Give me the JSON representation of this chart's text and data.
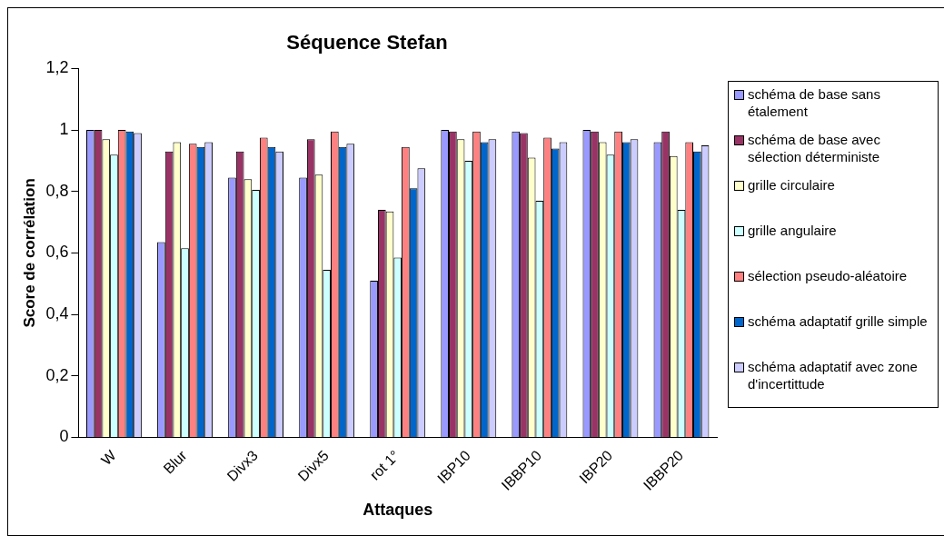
{
  "chart_data": {
    "type": "bar",
    "title": "Séquence Stefan",
    "xlabel": "Attaques",
    "ylabel": "Score de corrélation",
    "categories": [
      "W",
      "Blur",
      "Divx3",
      "Divx5",
      "rot 1°",
      "IBP10",
      "IBBP10",
      "IBP20",
      "IBBP20"
    ],
    "ylim": [
      0,
      1.2
    ],
    "yticks": [
      0,
      {
        "value": 0.2,
        "label": "0,2"
      },
      {
        "value": 0.4,
        "label": "0,4"
      },
      {
        "value": 0.6,
        "label": "0,6"
      },
      {
        "value": 0.8,
        "label": "0,8"
      },
      1,
      {
        "value": 1.2,
        "label": "1,2"
      }
    ],
    "grid": false,
    "legend": "right",
    "series": [
      {
        "name": "schéma de base sans étalement",
        "color": "#9999ff",
        "values": [
          1,
          0.635,
          0.845,
          0.845,
          0.51,
          1,
          0.995,
          1,
          0.96
        ]
      },
      {
        "name": "schéma de base avec sélection déterministe",
        "color": "#993366",
        "values": [
          1,
          0.93,
          0.93,
          0.97,
          0.74,
          0.995,
          0.99,
          0.995,
          0.995
        ]
      },
      {
        "name": "grille circulaire",
        "color": "#ffffcc",
        "values": [
          0.97,
          0.96,
          0.84,
          0.855,
          0.735,
          0.97,
          0.91,
          0.96,
          0.915
        ]
      },
      {
        "name": "grille angulaire",
        "color": "#ccffff",
        "values": [
          0.92,
          0.615,
          0.805,
          0.545,
          0.585,
          0.9,
          0.77,
          0.92,
          0.74
        ]
      },
      {
        "name": "sélection pseudo-aléatoire",
        "color": "#ff8080",
        "values": [
          1,
          0.955,
          0.975,
          0.995,
          0.945,
          0.995,
          0.975,
          0.995,
          0.96
        ]
      },
      {
        "name": "schéma adaptatif grille simple",
        "color": "#0066cc",
        "values": [
          0.995,
          0.945,
          0.945,
          0.945,
          0.81,
          0.96,
          0.94,
          0.96,
          0.93
        ]
      },
      {
        "name": "schéma adaptatif avec zone d'incertittude",
        "color": "#ccccff",
        "values": [
          0.99,
          0.96,
          0.93,
          0.955,
          0.875,
          0.97,
          0.96,
          0.97,
          0.95
        ]
      }
    ]
  }
}
